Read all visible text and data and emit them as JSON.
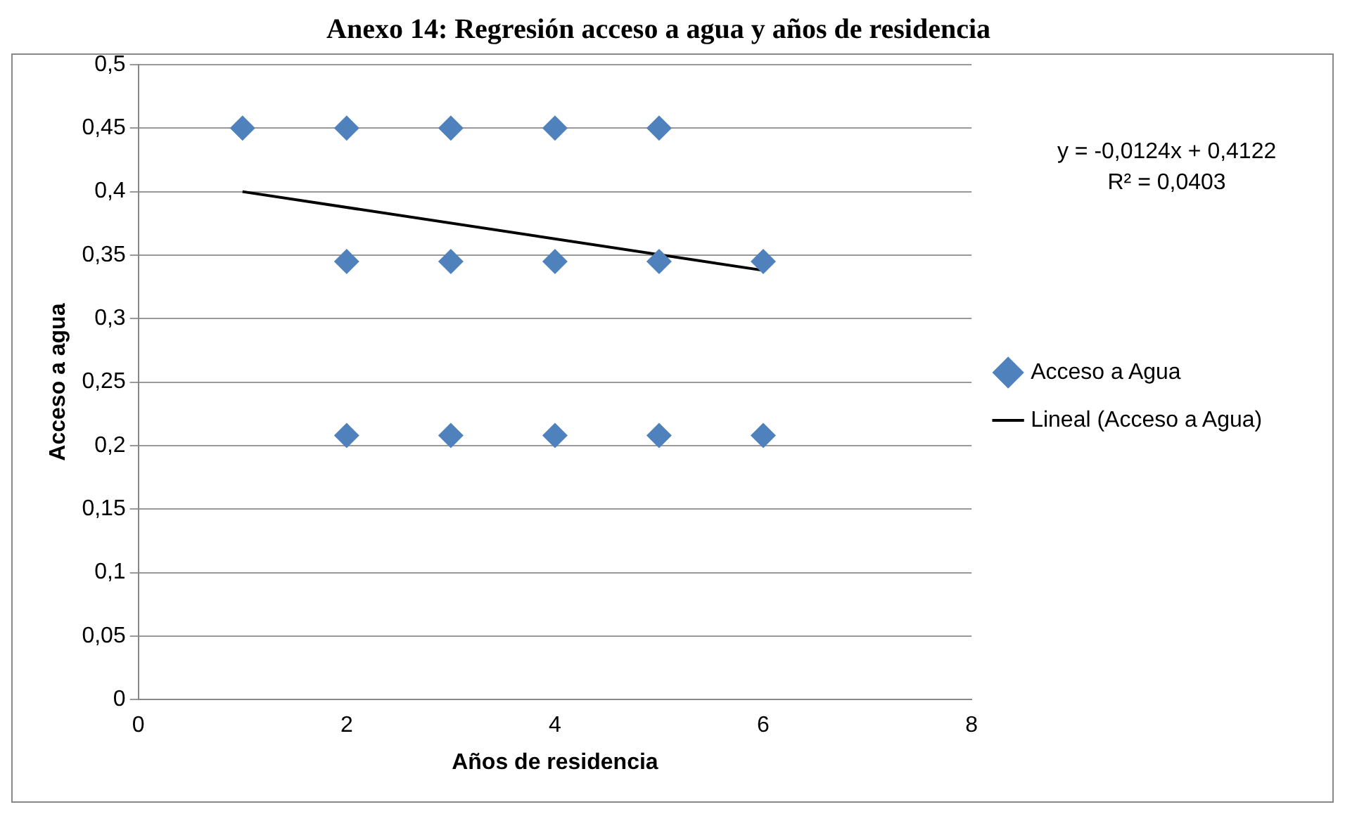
{
  "chart_data": {
    "type": "scatter",
    "title": "Anexo 14: Regresión acceso a agua y años de residencia",
    "xlabel": "Años de residencia",
    "ylabel": "Acceso a agua",
    "series": [
      {
        "name": "Acceso a Agua",
        "type": "scatter",
        "color": "#4f81bd",
        "marker": "diamond",
        "x": [
          1,
          2,
          3,
          4,
          5,
          2,
          3,
          4,
          5,
          6,
          2,
          3,
          4,
          5,
          6
        ],
        "values": [
          0.45,
          0.45,
          0.45,
          0.45,
          0.45,
          0.345,
          0.345,
          0.345,
          0.345,
          0.345,
          0.208,
          0.208,
          0.208,
          0.208,
          0.208
        ]
      },
      {
        "name": "Lineal (Acceso a Agua)",
        "type": "line",
        "color": "#000000",
        "marker": "none",
        "line_style": "solid",
        "x": [
          1,
          6
        ],
        "values": [
          0.4,
          0.338
        ]
      }
    ],
    "xlim": [
      0,
      8
    ],
    "xticks": [
      0,
      2,
      4,
      6,
      8
    ],
    "ylim": [
      0,
      0.5
    ],
    "yticks": [
      0,
      {
        "value": 0.05,
        "label": "0,05"
      },
      {
        "value": 0.1,
        "label": "0,1"
      },
      {
        "value": 0.15,
        "label": "0,15"
      },
      {
        "value": 0.2,
        "label": "0,2"
      },
      {
        "value": 0.25,
        "label": "0,25"
      },
      {
        "value": 0.3,
        "label": "0,3"
      },
      {
        "value": 0.35,
        "label": "0,35"
      },
      {
        "value": 0.4,
        "label": "0,4"
      },
      {
        "value": 0.45,
        "label": "0,45"
      },
      {
        "value": 0.5,
        "label": "0,5"
      }
    ],
    "grid": "y",
    "legend": "right",
    "annotations": [
      "y = -0,0124x + 0,4122",
      "R² = 0,0403"
    ]
  }
}
